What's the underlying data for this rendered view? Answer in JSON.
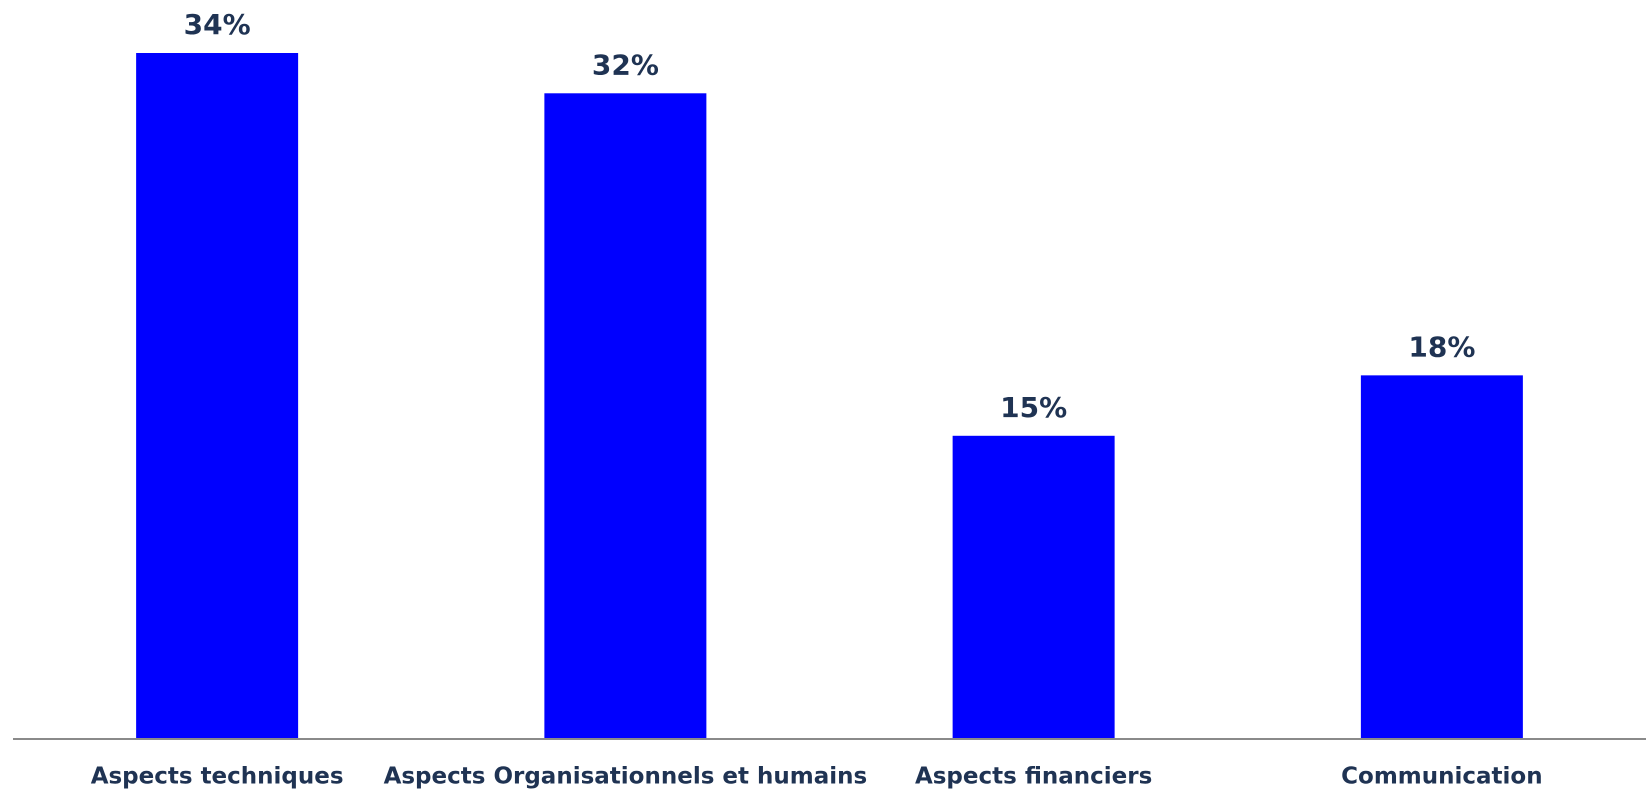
{
  "chart_data": {
    "type": "bar",
    "categories": [
      "Aspects techniques",
      "Aspects Organisationnels et humains",
      "Aspects financiers",
      "Communication"
    ],
    "values": [
      34,
      32,
      15,
      18
    ],
    "value_labels": [
      "34%",
      "32%",
      "15%",
      "18%"
    ],
    "color": "#0000ff"
  }
}
